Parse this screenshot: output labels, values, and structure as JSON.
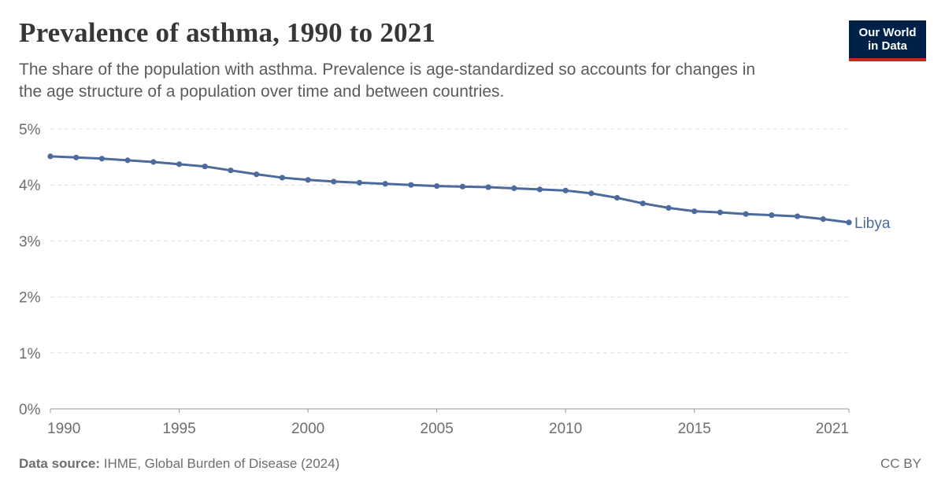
{
  "header": {
    "title": "Prevalence of asthma, 1990 to 2021",
    "subtitle": "The share of the population with asthma. Prevalence is age-standardized so accounts for changes in the age structure of a population over time and between countries."
  },
  "logo": {
    "line1": "Our World",
    "line2": "in Data"
  },
  "footer": {
    "source_label": "Data source:",
    "source_text": "IHME, Global Burden of Disease (2024)",
    "license": "CC BY"
  },
  "colors": {
    "series": "#4c6a9c",
    "grid": "#dddddd",
    "axis": "#999999",
    "logo_bg": "#002147",
    "logo_accent": "#ce261e"
  },
  "chart_data": {
    "type": "line",
    "title": "Prevalence of asthma, 1990 to 2021",
    "xlabel": "",
    "ylabel": "",
    "xlim": [
      1990,
      2021
    ],
    "ylim": [
      0,
      5
    ],
    "y_ticks": [
      0,
      1,
      2,
      3,
      4,
      5
    ],
    "y_tick_labels": [
      "0%",
      "1%",
      "2%",
      "3%",
      "4%",
      "5%"
    ],
    "x_ticks": [
      1990,
      1995,
      2000,
      2005,
      2010,
      2015,
      2021
    ],
    "x_tick_labels": [
      "1990",
      "1995",
      "2000",
      "2005",
      "2010",
      "2015",
      "2021"
    ],
    "grid": "horizontal-dashed",
    "legend": "inline-right",
    "series": [
      {
        "name": "Libya",
        "x": [
          1990,
          1991,
          1992,
          1993,
          1994,
          1995,
          1996,
          1997,
          1998,
          1999,
          2000,
          2001,
          2002,
          2003,
          2004,
          2005,
          2006,
          2007,
          2008,
          2009,
          2010,
          2011,
          2012,
          2013,
          2014,
          2015,
          2016,
          2017,
          2018,
          2019,
          2020,
          2021
        ],
        "y": [
          4.51,
          4.49,
          4.47,
          4.44,
          4.41,
          4.37,
          4.33,
          4.26,
          4.19,
          4.13,
          4.09,
          4.06,
          4.04,
          4.02,
          4.0,
          3.98,
          3.97,
          3.96,
          3.94,
          3.92,
          3.9,
          3.85,
          3.77,
          3.67,
          3.59,
          3.53,
          3.51,
          3.48,
          3.46,
          3.44,
          3.39,
          3.33
        ]
      }
    ]
  }
}
